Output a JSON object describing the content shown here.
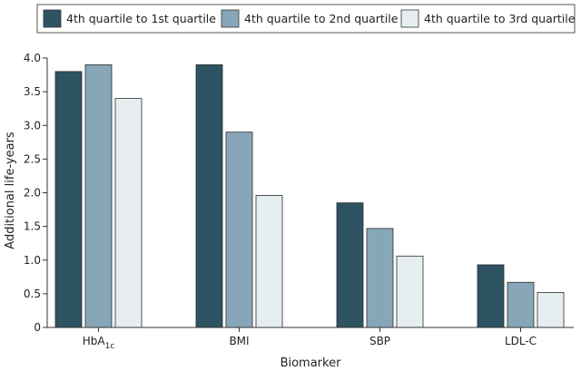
{
  "chart_data": {
    "type": "bar",
    "xlabel": "Biomarker",
    "ylabel": "Additional life-years",
    "ylim": [
      0,
      4.0
    ],
    "yticks": [
      "0",
      "0.5",
      "1.0",
      "1.5",
      "2.0",
      "2.5",
      "3.0",
      "3.5",
      "4.0"
    ],
    "legend_position": "top",
    "grid": false,
    "categories": [
      {
        "main": "HbA",
        "sub": "1c"
      },
      {
        "main": "BMI",
        "sub": ""
      },
      {
        "main": "SBP",
        "sub": ""
      },
      {
        "main": "LDL-C",
        "sub": ""
      }
    ],
    "series": [
      {
        "name": "4th quartile to 1st quartile",
        "color": "#2e5363",
        "values": [
          3.8,
          3.9,
          1.85,
          0.93
        ]
      },
      {
        "name": "4th quartile to 2nd quartile",
        "color": "#87a7b8",
        "values": [
          3.9,
          2.9,
          1.47,
          0.67
        ]
      },
      {
        "name": "4th quartile to 3rd quartile",
        "color": "#e6eef2",
        "values": [
          3.4,
          1.96,
          1.06,
          0.52
        ]
      }
    ]
  }
}
